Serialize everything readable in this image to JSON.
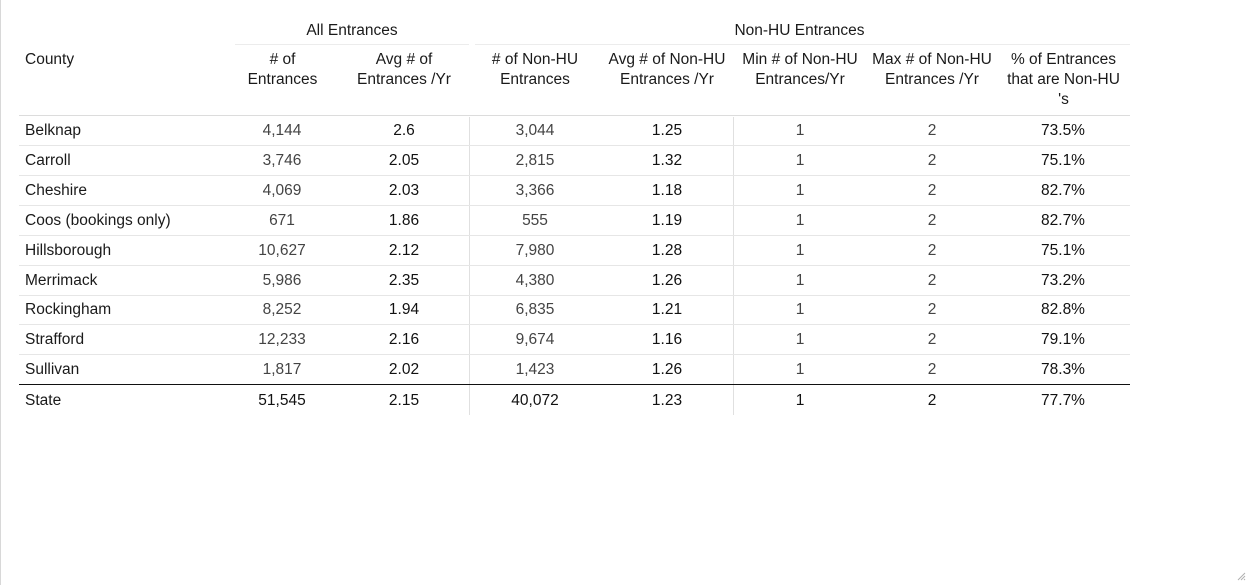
{
  "chart_data": {
    "type": "table",
    "column_groups": [
      {
        "label": "All Entrances"
      },
      {
        "label": "Non-HU Entrances"
      }
    ],
    "columns": [
      "County",
      "# of Entrances",
      "Avg # of Entrances /Yr",
      "# of Non-HU Entrances",
      "Avg # of Non-HU Entrances /Yr",
      "Min # of Non-HU Entrances/Yr",
      "Max # of Non-HU Entrances /Yr",
      "% of Entrances that are Non-HU 's"
    ],
    "rows": [
      [
        "Belknap",
        "4,144",
        "2.6",
        "3,044",
        "1.25",
        "1",
        "2",
        "73.5%"
      ],
      [
        "Carroll",
        "3,746",
        "2.05",
        "2,815",
        "1.32",
        "1",
        "2",
        "75.1%"
      ],
      [
        "Cheshire",
        "4,069",
        "2.03",
        "3,366",
        "1.18",
        "1",
        "2",
        "82.7%"
      ],
      [
        "Coos (bookings only)",
        "671",
        "1.86",
        "555",
        "1.19",
        "1",
        "2",
        "82.7%"
      ],
      [
        "Hillsborough",
        "10,627",
        "2.12",
        "7,980",
        "1.28",
        "1",
        "2",
        "75.1%"
      ],
      [
        "Merrimack",
        "5,986",
        "2.35",
        "4,380",
        "1.26",
        "1",
        "2",
        "73.2%"
      ],
      [
        "Rockingham",
        "8,252",
        "1.94",
        "6,835",
        "1.21",
        "1",
        "2",
        "82.8%"
      ],
      [
        "Strafford",
        "12,233",
        "2.16",
        "9,674",
        "1.16",
        "1",
        "2",
        "79.1%"
      ],
      [
        "Sullivan",
        "1,817",
        "2.02",
        "1,423",
        "1.26",
        "1",
        "2",
        "78.3%"
      ]
    ],
    "total_row": [
      "State",
      "51,545",
      "2.15",
      "40,072",
      "1.23",
      "1",
      "2",
      "77.7%"
    ]
  }
}
